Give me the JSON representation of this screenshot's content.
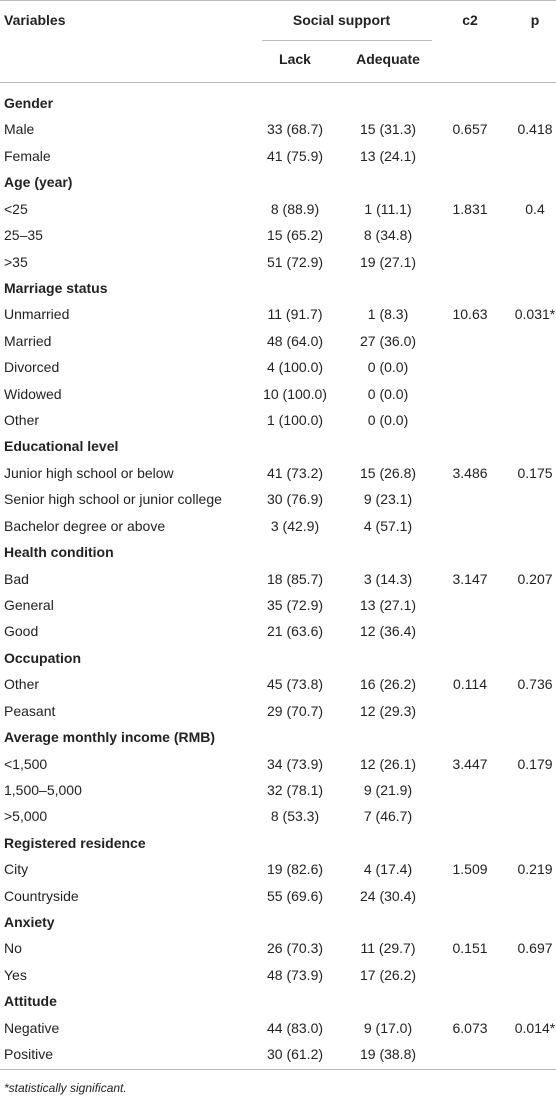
{
  "header": {
    "variables": "Variables",
    "group": "Social support",
    "lack": "Lack",
    "adequate": "Adequate",
    "c2": "c2",
    "p": "p"
  },
  "sections": [
    {
      "title": "Gender",
      "rows": [
        {
          "label": "Male",
          "lack": "33 (68.7)",
          "adequate": "15 (31.3)",
          "c2": "0.657",
          "p": "0.418"
        },
        {
          "label": "Female",
          "lack": "41 (75.9)",
          "adequate": "13 (24.1)"
        }
      ]
    },
    {
      "title": "Age (year)",
      "rows": [
        {
          "label": "<25",
          "lack": "8 (88.9)",
          "adequate": "1 (11.1)",
          "c2": "1.831",
          "p": "0.4"
        },
        {
          "label": "25–35",
          "lack": "15 (65.2)",
          "adequate": "8 (34.8)"
        },
        {
          "label": ">35",
          "lack": "51 (72.9)",
          "adequate": "19 (27.1)"
        }
      ]
    },
    {
      "title": "Marriage status",
      "rows": [
        {
          "label": "Unmarried",
          "lack": "11 (91.7)",
          "adequate": "1 (8.3)",
          "c2": "10.63",
          "p": "0.031*"
        },
        {
          "label": "Married",
          "lack": "48 (64.0)",
          "adequate": "27 (36.0)"
        },
        {
          "label": "Divorced",
          "lack": "4 (100.0)",
          "adequate": "0 (0.0)"
        },
        {
          "label": "Widowed",
          "lack": "10 (100.0)",
          "adequate": "0 (0.0)"
        },
        {
          "label": "Other",
          "lack": "1 (100.0)",
          "adequate": "0 (0.0)"
        }
      ]
    },
    {
      "title": "Educational level",
      "rows": [
        {
          "label": "Junior high school or below",
          "lack": "41 (73.2)",
          "adequate": "15 (26.8)",
          "c2": "3.486",
          "p": "0.175"
        },
        {
          "label": "Senior high school or junior college",
          "lack": "30 (76.9)",
          "adequate": "9 (23.1)"
        },
        {
          "label": "Bachelor degree or above",
          "lack": "3 (42.9)",
          "adequate": "4 (57.1)"
        }
      ]
    },
    {
      "title": "Health condition",
      "rows": [
        {
          "label": "Bad",
          "lack": "18 (85.7)",
          "adequate": "3 (14.3)",
          "c2": "3.147",
          "p": "0.207"
        },
        {
          "label": "General",
          "lack": "35 (72.9)",
          "adequate": "13 (27.1)"
        },
        {
          "label": "Good",
          "lack": "21 (63.6)",
          "adequate": "12 (36.4)"
        }
      ]
    },
    {
      "title": "Occupation",
      "rows": [
        {
          "label": "Other",
          "lack": "45 (73.8)",
          "adequate": "16 (26.2)",
          "c2": "0.114",
          "p": "0.736"
        },
        {
          "label": "Peasant",
          "lack": "29 (70.7)",
          "adequate": "12 (29.3)"
        }
      ]
    },
    {
      "title": "Average monthly income (RMB)",
      "rows": [
        {
          "label": "<1,500",
          "lack": "34 (73.9)",
          "adequate": "12 (26.1)",
          "c2": "3.447",
          "p": "0.179"
        },
        {
          "label": "1,500–5,000",
          "lack": "32 (78.1)",
          "adequate": "9 (21.9)"
        },
        {
          "label": ">5,000",
          "lack": "8 (53.3)",
          "adequate": "7 (46.7)"
        }
      ]
    },
    {
      "title": "Registered residence",
      "rows": [
        {
          "label": "City",
          "lack": "19 (82.6)",
          "adequate": "4 (17.4)",
          "c2": "1.509",
          "p": "0.219"
        },
        {
          "label": "Countryside",
          "lack": "55 (69.6)",
          "adequate": "24 (30.4)"
        }
      ]
    },
    {
      "title": "Anxiety",
      "rows": [
        {
          "label": "No",
          "lack": "26 (70.3)",
          "adequate": "11 (29.7)",
          "c2": "0.151",
          "p": "0.697"
        },
        {
          "label": "Yes",
          "lack": "48 (73.9)",
          "adequate": "17 (26.2)"
        }
      ]
    },
    {
      "title": "Attitude",
      "rows": [
        {
          "label": "Negative",
          "lack": "44 (83.0)",
          "adequate": "9 (17.0)",
          "c2": "6.073",
          "p": "0.014*"
        },
        {
          "label": "Positive",
          "lack": "30 (61.2)",
          "adequate": "19 (38.8)"
        }
      ]
    }
  ],
  "footnote": "*statistically significant."
}
